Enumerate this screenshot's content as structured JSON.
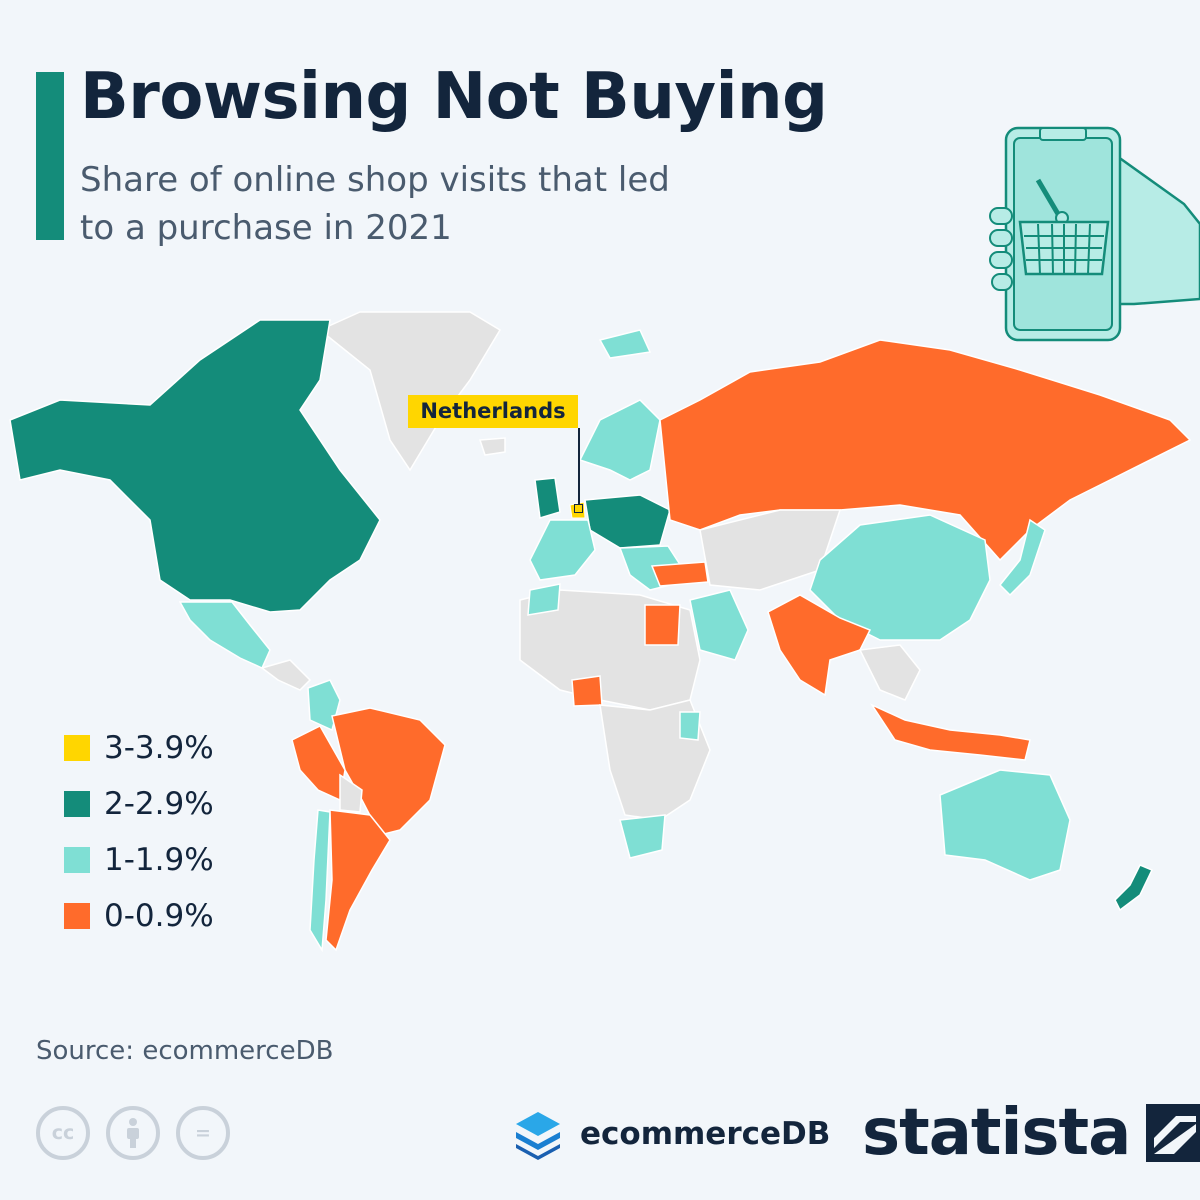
{
  "header": {
    "title": "Browsing Not Buying",
    "subtitle": "Share of online shop visits that led to a purchase in 2021"
  },
  "colors": {
    "accent": "#148c7a",
    "band_3_3_9": "#ffd600",
    "band_2_2_9": "#148c7a",
    "band_1_1_9": "#7fdfd4",
    "band_0_0_9": "#ff6b2b",
    "no_data": "#e3e3e3",
    "background": "#f2f6fa"
  },
  "callout": {
    "label": "Netherlands"
  },
  "legend": {
    "items": [
      {
        "label": "3-3.9%",
        "color": "#ffd600"
      },
      {
        "label": "2-2.9%",
        "color": "#148c7a"
      },
      {
        "label": "1-1.9%",
        "color": "#7fdfd4"
      },
      {
        "label": "0-0.9%",
        "color": "#ff6b2b"
      }
    ]
  },
  "map_data": {
    "type": "choropleth",
    "regions": [
      {
        "name": "Netherlands",
        "band": "3-3.9%"
      },
      {
        "name": "North America (USA, Canada)",
        "band": "2-2.9%"
      },
      {
        "name": "United Kingdom",
        "band": "2-2.9%"
      },
      {
        "name": "Central Europe",
        "band": "2-2.9%"
      },
      {
        "name": "New Zealand",
        "band": "2-2.9%"
      },
      {
        "name": "Mexico",
        "band": "1-1.9%"
      },
      {
        "name": "China",
        "band": "1-1.9%"
      },
      {
        "name": "Australia",
        "band": "1-1.9%"
      },
      {
        "name": "South Africa",
        "band": "1-1.9%"
      },
      {
        "name": "Scandinavia",
        "band": "1-1.9%"
      },
      {
        "name": "Saudi Arabia",
        "band": "1-1.9%"
      },
      {
        "name": "Russia",
        "band": "0-0.9%"
      },
      {
        "name": "India",
        "band": "0-0.9%"
      },
      {
        "name": "Brazil",
        "band": "0-0.9%"
      },
      {
        "name": "Argentina",
        "band": "0-0.9%"
      },
      {
        "name": "Indonesia",
        "band": "0-0.9%"
      },
      {
        "name": "Egypt",
        "band": "0-0.9%"
      },
      {
        "name": "Nigeria",
        "band": "0-0.9%"
      },
      {
        "name": "Turkey",
        "band": "0-0.9%"
      }
    ]
  },
  "footer": {
    "source": "Source: ecommerceDB",
    "cc_icons": [
      "cc-icon",
      "attribution-icon",
      "no-derivatives-icon"
    ],
    "cc_label": "cc",
    "nd_label": "=",
    "partner_logo_text": "ecommerceDB",
    "brand_logo_text": "statista"
  }
}
